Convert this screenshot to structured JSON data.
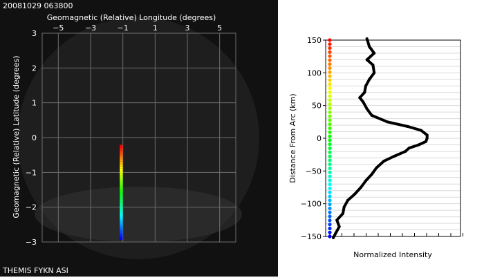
{
  "header": {
    "timestamp": "20081029 063800",
    "footer_label": "THEMIS FYKN ASI"
  },
  "colors": {
    "sky_background": "#111111",
    "grid": "#6e6e6e",
    "axes_text": "#ffffff",
    "profile_line": "#000000",
    "right_panel_background": "#ffffff"
  },
  "chart_data": [
    {
      "type": "scatter",
      "title": "",
      "xlabel": "Geomagnetic (Relative) Longitude (degrees)",
      "ylabel": "Geomagnetic (Relative) Latitude (degrees)",
      "xlim": [
        -6,
        6
      ],
      "ylim": [
        -3,
        3
      ],
      "xticks": [
        -5,
        -3,
        -1,
        1,
        3,
        5
      ],
      "yticks": [
        -3,
        -2,
        -1,
        0,
        1,
        2,
        3
      ],
      "xtick_labels": [
        "−5",
        "−3",
        "−1",
        "1",
        "3",
        "5"
      ],
      "ytick_labels": [
        "−3",
        "−2",
        "−1",
        "0",
        "1",
        "2",
        "3"
      ],
      "grid": true,
      "series": [
        {
          "x": -1.1,
          "y_start": -2.9,
          "y_end": -0.25,
          "color_scale": "rainbow"
        }
      ]
    },
    {
      "type": "line",
      "title": "",
      "xlabel": "Normalized Intensity",
      "ylabel": "Distance From Arc (km)",
      "ylim": [
        -150,
        150
      ],
      "yticks": [
        -150,
        -100,
        -50,
        0,
        50,
        100,
        150
      ],
      "ytick_labels": [
        "−150",
        "−100",
        "−50",
        "0",
        "50",
        "100",
        "150"
      ],
      "grid": true,
      "series": [
        {
          "y": [
            152,
            140,
            130,
            125,
            120,
            112,
            100,
            90,
            80,
            70,
            62,
            55,
            45,
            35,
            25,
            18,
            12,
            5,
            0,
            -5,
            -10,
            -15,
            -20,
            -28,
            -35,
            -45,
            -55,
            -65,
            -75,
            -85,
            -95,
            -105,
            -115,
            -125,
            -135,
            -145,
            -152
          ],
          "x": [
            0.28,
            0.3,
            0.34,
            0.31,
            0.28,
            0.33,
            0.34,
            0.3,
            0.27,
            0.26,
            0.22,
            0.25,
            0.28,
            0.32,
            0.45,
            0.62,
            0.73,
            0.78,
            0.78,
            0.77,
            0.71,
            0.63,
            0.6,
            0.5,
            0.42,
            0.36,
            0.32,
            0.27,
            0.23,
            0.18,
            0.12,
            0.09,
            0.08,
            0.03,
            0.05,
            0.02,
            0.0
          ]
        }
      ],
      "colorbar": {
        "range": [
          -150,
          150
        ],
        "color_scale": "rainbow"
      }
    }
  ]
}
